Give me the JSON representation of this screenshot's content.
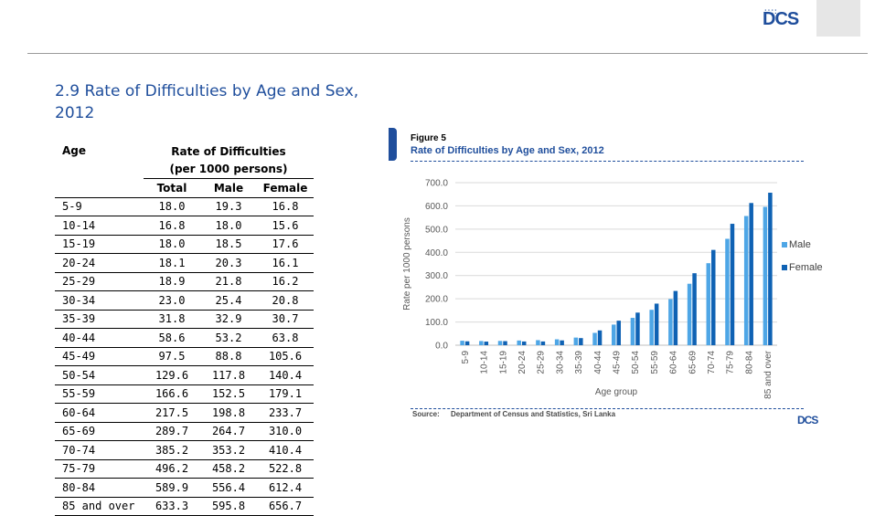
{
  "logo": {
    "text": "DCS",
    "dots": "::::"
  },
  "section": {
    "title": "2.9  Rate of Difficulties by Age and Sex, 2012"
  },
  "table": {
    "age_header": "Age",
    "group_header": "Rate of Difficulties",
    "group_subheader": "(per 1000 persons)",
    "col_total": "Total",
    "col_male": "Male",
    "col_female": "Female",
    "rows": [
      {
        "age": "5-9",
        "total": "18.0",
        "male": "19.3",
        "female": "16.8"
      },
      {
        "age": "10-14",
        "total": "16.8",
        "male": "18.0",
        "female": "15.6"
      },
      {
        "age": "15-19",
        "total": "18.0",
        "male": "18.5",
        "female": "17.6"
      },
      {
        "age": "20-24",
        "total": "18.1",
        "male": "20.3",
        "female": "16.1"
      },
      {
        "age": "25-29",
        "total": "18.9",
        "male": "21.8",
        "female": "16.2"
      },
      {
        "age": "30-34",
        "total": "23.0",
        "male": "25.4",
        "female": "20.8"
      },
      {
        "age": "35-39",
        "total": "31.8",
        "male": "32.9",
        "female": "30.7"
      },
      {
        "age": "40-44",
        "total": "58.6",
        "male": "53.2",
        "female": "63.8"
      },
      {
        "age": "45-49",
        "total": "97.5",
        "male": "88.8",
        "female": "105.6"
      },
      {
        "age": "50-54",
        "total": "129.6",
        "male": "117.8",
        "female": "140.4"
      },
      {
        "age": "55-59",
        "total": "166.6",
        "male": "152.5",
        "female": "179.1"
      },
      {
        "age": "60-64",
        "total": "217.5",
        "male": "198.8",
        "female": "233.7"
      },
      {
        "age": "65-69",
        "total": "289.7",
        "male": "264.7",
        "female": "310.0"
      },
      {
        "age": "70-74",
        "total": "385.2",
        "male": "353.2",
        "female": "410.4"
      },
      {
        "age": "75-79",
        "total": "496.2",
        "male": "458.2",
        "female": "522.8"
      },
      {
        "age": "80-84",
        "total": "589.9",
        "male": "556.4",
        "female": "612.4"
      },
      {
        "age": "85 and over",
        "total": "633.3",
        "male": "595.8",
        "female": "656.7"
      }
    ]
  },
  "figure": {
    "number": "Figure 5",
    "title": "Rate of Difficulties by Age and Sex, 2012",
    "source_label": "Source:",
    "source_text": "Department of Census and Statistics, Sri Lanka"
  },
  "chart_data": {
    "type": "bar",
    "categories": [
      "5-9",
      "10-14",
      "15-19",
      "20-24",
      "25-29",
      "30-34",
      "35-39",
      "40-44",
      "45-49",
      "50-54",
      "55-59",
      "60-64",
      "65-69",
      "70-74",
      "75-79",
      "80-84",
      "85 and over"
    ],
    "series": [
      {
        "name": "Male",
        "color": "#4ea6e6",
        "values": [
          19.3,
          18.0,
          18.5,
          20.3,
          21.8,
          25.4,
          32.9,
          53.2,
          88.8,
          117.8,
          152.5,
          198.8,
          264.7,
          353.2,
          458.2,
          556.4,
          595.8
        ]
      },
      {
        "name": "Female",
        "color": "#0f62b4",
        "values": [
          16.8,
          15.6,
          17.6,
          16.1,
          16.2,
          20.8,
          30.7,
          63.8,
          105.6,
          140.4,
          179.1,
          233.7,
          310.0,
          410.4,
          522.8,
          612.4,
          656.7
        ]
      }
    ],
    "xlabel": "Age group",
    "ylabel": "Rate per 1000 persons",
    "ylim": [
      0,
      700
    ],
    "yticks": [
      "0.0",
      "100.0",
      "200.0",
      "300.0",
      "400.0",
      "500.0",
      "600.0",
      "700.0"
    ],
    "grid": true,
    "legend": "right"
  }
}
